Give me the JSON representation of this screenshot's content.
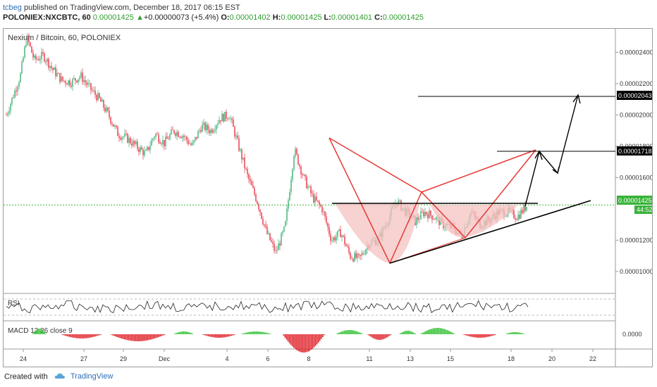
{
  "header": {
    "user": "tcbeg",
    "published_text": "published on TradingView.com, December 18, 2017 06:15 EST",
    "symbol": "POLONIEX:NXCBTC, 60",
    "last": "0.00001425",
    "arrow": "▲",
    "change": "+0.00000073 (+5.4%)",
    "o_label": "O:",
    "o_value": "0.00001402",
    "h_label": "H:",
    "h_value": "0.00001425",
    "l_label": "L:",
    "l_value": "0.00001401",
    "c_label": "C:",
    "c_value": "0.00001425"
  },
  "chart_data": {
    "type": "candlestick",
    "title": "Nexium / Bitcoin, 60, POLONIEX",
    "y_ticks": [
      "0.00002400",
      "0.00002200",
      "0.00002000",
      "0.00001800",
      "0.00001600",
      "0.00001200",
      "0.00001000"
    ],
    "ylim": [
      8.6e-06,
      2.55e-05
    ],
    "x_ticks": [
      "24",
      "27",
      "29",
      "Dec",
      "4",
      "6",
      "8",
      "11",
      "13",
      "15",
      "18",
      "20",
      "22"
    ],
    "price_path": [
      [
        0,
        2e-05
      ],
      [
        1.5,
        2.25e-05
      ],
      [
        2.2,
        2.5e-05
      ],
      [
        3,
        2.35e-05
      ],
      [
        4,
        2.38e-05
      ],
      [
        5,
        2.29e-05
      ],
      [
        6,
        2.22e-05
      ],
      [
        7,
        2.21e-05
      ],
      [
        8,
        2.25e-05
      ],
      [
        9,
        2.17e-05
      ],
      [
        10,
        2.1e-05
      ],
      [
        11,
        2e-05
      ],
      [
        12,
        1.88e-05
      ],
      [
        13,
        1.85e-05
      ],
      [
        14,
        1.8e-05
      ],
      [
        15,
        1.75e-05
      ],
      [
        16,
        1.88e-05
      ],
      [
        17,
        1.82e-05
      ],
      [
        18,
        1.9e-05
      ],
      [
        19,
        1.87e-05
      ],
      [
        20,
        1.8e-05
      ],
      [
        21,
        1.93e-05
      ],
      [
        22,
        1.9e-05
      ],
      [
        23,
        1.98e-05
      ],
      [
        24,
        2e-05
      ],
      [
        25,
        1.8e-05
      ],
      [
        26,
        1.6e-05
      ],
      [
        27,
        1.45e-05
      ],
      [
        28,
        1.25e-05
      ],
      [
        29,
        1.12e-05
      ],
      [
        30,
        1.28e-05
      ],
      [
        31,
        1.78e-05
      ],
      [
        32,
        1.6e-05
      ],
      [
        33,
        1.47e-05
      ],
      [
        34,
        1.4e-05
      ],
      [
        35,
        1.2e-05
      ],
      [
        36,
        1.25e-05
      ],
      [
        37,
        1.1e-05
      ],
      [
        38,
        1.08e-05
      ],
      [
        39,
        1.18e-05
      ],
      [
        40,
        1.2e-05
      ],
      [
        41,
        1.32e-05
      ],
      [
        42,
        1.45e-05
      ],
      [
        43,
        1.38e-05
      ],
      [
        44,
        1.32e-05
      ],
      [
        45,
        1.38e-05
      ],
      [
        46,
        1.35e-05
      ],
      [
        47,
        1.3e-05
      ],
      [
        48,
        1.28e-05
      ],
      [
        49,
        1.23e-05
      ],
      [
        50,
        1.38e-05
      ],
      [
        51,
        1.3e-05
      ],
      [
        52,
        1.33e-05
      ],
      [
        53,
        1.38e-05
      ],
      [
        54,
        1.38e-05
      ],
      [
        55,
        1.35e-05
      ],
      [
        56,
        1.42e-05
      ]
    ],
    "current_price_label": "0.00001425",
    "countdown_label": "44:52",
    "neckline_price": 1.425e-05,
    "target_1_label": "0.00001718",
    "target_2_label": "0.00002043",
    "target_1_price": 1.718e-05,
    "target_2_price": 2.043e-05,
    "indicators": [
      {
        "name": "RSI",
        "label": "RSI"
      },
      {
        "name": "MACD",
        "label": "MACD 12 26 close 9",
        "zero_label": "0.0000"
      }
    ],
    "colors": {
      "up": "#53b987",
      "down": "#eb4d5c",
      "pattern": "#e53935",
      "cup_fill": "#f6c1c1",
      "price_line": "#39b339"
    }
  },
  "footer": {
    "created_with": "Created with",
    "brand": "TradingView"
  }
}
